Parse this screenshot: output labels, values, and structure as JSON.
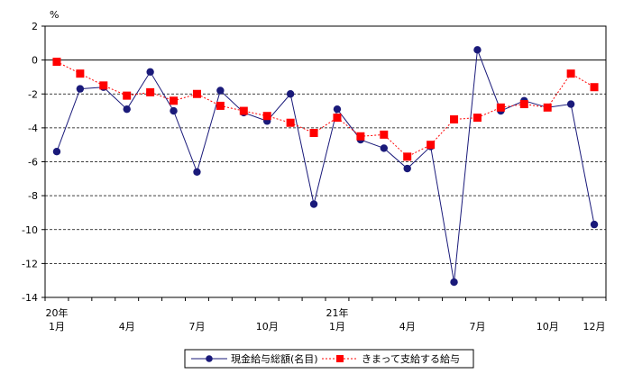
{
  "chart_data": {
    "type": "line",
    "unit_label": "%",
    "ylim": [
      -14,
      2
    ],
    "y_ticks": [
      2,
      0,
      -2,
      -4,
      -6,
      -8,
      -10,
      -12,
      -14
    ],
    "grid": "horizontal-dashed",
    "legend_position": "bottom",
    "x_ticks": [
      {
        "index": 0,
        "year": "20年",
        "label": "1月"
      },
      {
        "index": 3,
        "year": "",
        "label": "4月"
      },
      {
        "index": 6,
        "year": "",
        "label": "7月"
      },
      {
        "index": 9,
        "year": "",
        "label": "10月"
      },
      {
        "index": 12,
        "year": "21年",
        "label": "1月"
      },
      {
        "index": 15,
        "year": "",
        "label": "4月"
      },
      {
        "index": 18,
        "year": "",
        "label": "7月"
      },
      {
        "index": 21,
        "year": "",
        "label": "10月"
      },
      {
        "index": 23,
        "year": "",
        "label": "12月"
      }
    ],
    "series": [
      {
        "name": "現金給与総額(名目)",
        "color": "#1a1a7a",
        "marker": "circle",
        "line_style": "solid",
        "values": [
          -5.4,
          -1.7,
          -1.6,
          -2.9,
          -0.7,
          -3.0,
          -6.6,
          -1.8,
          -3.1,
          -3.6,
          -2.0,
          -8.5,
          -2.9,
          -4.7,
          -5.2,
          -6.4,
          -5.1,
          -13.1,
          0.6,
          -3.0,
          -2.4,
          -2.8,
          -2.6,
          -9.7
        ]
      },
      {
        "name": "きまって支給する給与",
        "color": "#ff0000",
        "marker": "square",
        "line_style": "dashed",
        "values": [
          -0.1,
          -0.8,
          -1.5,
          -2.1,
          -1.9,
          -2.4,
          -2.0,
          -2.7,
          -3.0,
          -3.3,
          -3.7,
          -4.3,
          -3.4,
          -4.5,
          -4.4,
          -5.7,
          -5.0,
          -3.5,
          -3.4,
          -2.8,
          -2.6,
          -2.8,
          -0.8,
          -1.6
        ]
      }
    ]
  }
}
